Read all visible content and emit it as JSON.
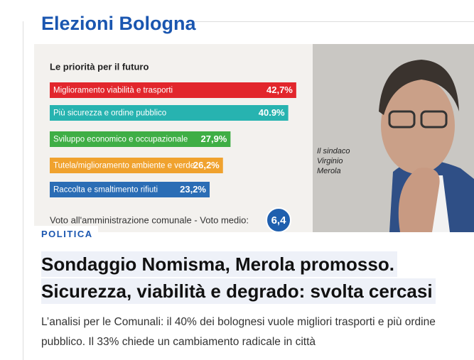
{
  "section_title": "Elezioni Bologna",
  "image": {
    "chart_title": "Le priorità per il futuro",
    "chart": {
      "type": "bar",
      "categories": [
        "Miglioramento viabilità e trasporti",
        "Più sicurezza e ordine pubblico",
        "Sviluppo economico e occupazionale",
        "Tutela/miglioramento ambiente e verde",
        "Raccolta e smaltimento rifiuti"
      ],
      "values": [
        42.7,
        40.9,
        27.9,
        26.2,
        23.2
      ],
      "value_labels": [
        "42,7%",
        "40.9%",
        "27,9%",
        "26,2%",
        "23,2%"
      ],
      "colors": [
        "#e2262c",
        "#27b3b0",
        "#3fae45",
        "#f0a22e",
        "#2b6db5"
      ]
    },
    "vote_text": "Voto all'amministrazione comunale - Voto medio:",
    "vote_value": 6.4,
    "vote_label": "6,4",
    "caption": [
      "Il sindaco",
      "Virginio",
      "Merola"
    ]
  },
  "category": "POLITICA",
  "headline_lines": [
    "Sondaggio Nomisma, Merola promosso.",
    "Sicurezza, viabilità e degrado: svolta cercasi"
  ],
  "summary_lines": [
    "L’analisi per le Comunali: il 40% dei bolognesi vuole migliori trasporti e più ordine",
    "pubblico. Il 33% chiede un cambiamento radicale in città"
  ]
}
